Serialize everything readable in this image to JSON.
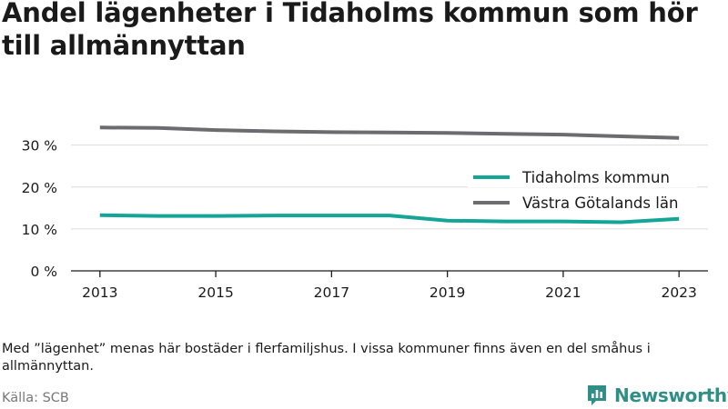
{
  "title": "Andel lägenheter i Tidaholms kommun som hör till allmännyttan",
  "note": "Med ”lägenhet” menas här bostäder i flerfamiljshus. I vissa kommuner finns även en del småhus i allmännyttan.",
  "source": "Källa: SCB",
  "brand": {
    "name": "Newsworthy",
    "logo_icon": "bar-chart-logo-icon",
    "color": "#2f8f86"
  },
  "chart_data": {
    "type": "line",
    "title": "Andel lägenheter i Tidaholms kommun som hör till allmännyttan",
    "xlabel": "",
    "ylabel": "",
    "x": [
      2013,
      2014,
      2015,
      2016,
      2017,
      2018,
      2019,
      2020,
      2021,
      2022,
      2023
    ],
    "x_tick_labels": [
      "2013",
      "2015",
      "2017",
      "2019",
      "2021",
      "2023"
    ],
    "y_ticks": [
      0,
      10,
      20,
      30
    ],
    "y_tick_labels": [
      "0 %",
      "10 %",
      "20 %",
      "30 %"
    ],
    "ylim": [
      0,
      36
    ],
    "xlim": [
      2012.5,
      2023.5
    ],
    "grid": true,
    "legend_position": "right",
    "series": [
      {
        "name": "Tidaholms kommun",
        "color": "#14a597",
        "values": [
          13.3,
          13.1,
          13.1,
          13.2,
          13.2,
          13.2,
          12.0,
          11.8,
          11.8,
          11.6,
          12.4
        ]
      },
      {
        "name": "Västra Götalands län",
        "color": "#6b6b70",
        "values": [
          34.2,
          34.1,
          33.6,
          33.3,
          33.1,
          33.0,
          32.9,
          32.7,
          32.5,
          32.1,
          31.7
        ]
      }
    ]
  }
}
